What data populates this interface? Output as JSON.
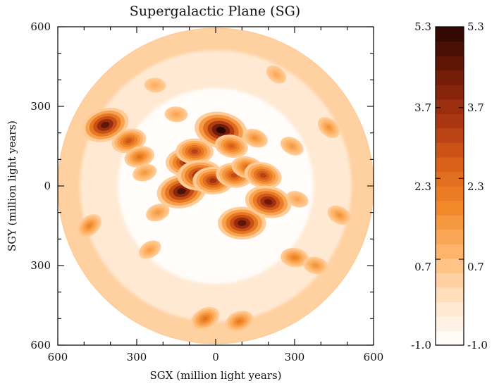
{
  "chart_data": {
    "type": "heatmap",
    "title": "Supergalactic Plane (SG)",
    "xlabel": "SGX (million light years)",
    "ylabel": "SGY (million light years)",
    "x_ticks": [
      "600",
      "300",
      "0",
      "300",
      "600"
    ],
    "y_ticks": [
      "600",
      "300",
      "0",
      "300",
      "600"
    ],
    "xlim": [
      -600,
      600
    ],
    "ylim": [
      -600,
      600
    ],
    "domain": "circle, radius 600 million light years",
    "colorbar": {
      "range": [
        -1.0,
        5.3
      ],
      "ticks": [
        "5.3",
        "3.7",
        "2.3",
        "0.7",
        "-1.0"
      ],
      "tick_values": [
        5.3,
        3.7,
        2.3,
        0.7,
        -1.0
      ],
      "levels": 22,
      "colormap": [
        "#ffffff",
        "#ffe3c6",
        "#ffb870",
        "#f28a2a",
        "#d9601a",
        "#a83410",
        "#6e1a08",
        "#2a0603"
      ]
    },
    "features": [
      {
        "x": -420,
        "y": 230,
        "value": 4.6
      },
      {
        "x": -330,
        "y": 170,
        "value": 2.8
      },
      {
        "x": -290,
        "y": 110,
        "value": 2.2
      },
      {
        "x": -270,
        "y": 50,
        "value": 1.4
      },
      {
        "x": -480,
        "y": -150,
        "value": 1.8
      },
      {
        "x": -220,
        "y": -100,
        "value": 1.4
      },
      {
        "x": -150,
        "y": 270,
        "value": 1.2
      },
      {
        "x": -130,
        "y": -20,
        "value": 4.8
      },
      {
        "x": -110,
        "y": 90,
        "value": 3.8
      },
      {
        "x": -80,
        "y": 130,
        "value": 3.2
      },
      {
        "x": -60,
        "y": 40,
        "value": 4.2
      },
      {
        "x": -10,
        "y": 20,
        "value": 3.6
      },
      {
        "x": 20,
        "y": 210,
        "value": 5.3
      },
      {
        "x": 60,
        "y": 150,
        "value": 2.6
      },
      {
        "x": 70,
        "y": 40,
        "value": 3.0
      },
      {
        "x": 100,
        "y": -140,
        "value": 4.6
      },
      {
        "x": 120,
        "y": 70,
        "value": 2.4
      },
      {
        "x": 180,
        "y": 40,
        "value": 3.2
      },
      {
        "x": 200,
        "y": -60,
        "value": 4.4
      },
      {
        "x": 150,
        "y": 180,
        "value": 1.6
      },
      {
        "x": 290,
        "y": 150,
        "value": 1.4
      },
      {
        "x": 310,
        "y": -50,
        "value": 1.2
      },
      {
        "x": 430,
        "y": 220,
        "value": 1.5
      },
      {
        "x": 470,
        "y": -110,
        "value": 1.5
      },
      {
        "x": 300,
        "y": -270,
        "value": 1.9
      },
      {
        "x": 380,
        "y": -300,
        "value": 1.5
      },
      {
        "x": -250,
        "y": -240,
        "value": 1.3
      },
      {
        "x": -40,
        "y": -500,
        "value": 2.2
      },
      {
        "x": 90,
        "y": -510,
        "value": 2.0
      },
      {
        "x": 230,
        "y": 420,
        "value": 1.1
      },
      {
        "x": -230,
        "y": 380,
        "value": 1.0
      }
    ]
  }
}
